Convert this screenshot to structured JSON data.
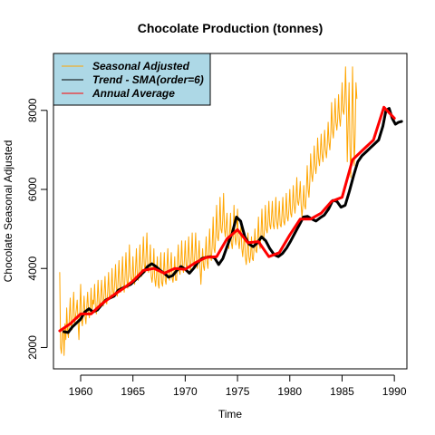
{
  "chart_data": {
    "type": "line",
    "title": "Chocolate Production (tonnes)",
    "xlabel": "Time",
    "ylabel": "Chocolate Seasonal Adjusted",
    "xlim": [
      1957.4,
      1991.2
    ],
    "ylim": [
      1460,
      9440
    ],
    "x_ticks": [
      1960,
      1965,
      1970,
      1975,
      1980,
      1985,
      1990
    ],
    "y_ticks": [
      2000,
      4000,
      6000,
      8000
    ],
    "grid": false,
    "legend": {
      "position": "top-left",
      "background": "#add8e6",
      "entries": [
        "Seasonal Adjusted",
        "Trend - SMA(order=6)",
        "Annual Average"
      ]
    },
    "series": [
      {
        "name": "Seasonal Adjusted",
        "color": "#ffa500",
        "line_width": 1,
        "x_start": 1958.0,
        "x_step": 0.0833333,
        "values": [
          3900,
          2000,
          1850,
          2350,
          2500,
          1800,
          2600,
          2200,
          3000,
          2400,
          2250,
          2750,
          3250,
          2550,
          2450,
          2900,
          3400,
          2600,
          2750,
          2950,
          3200,
          2650,
          2200,
          2900,
          3600,
          2700,
          2550,
          2900,
          3300,
          2800,
          2600,
          3000,
          3400,
          2900,
          2750,
          3000,
          3500,
          2900,
          3200,
          3100,
          3600,
          3000,
          2850,
          3200,
          3700,
          3100,
          3000,
          3300,
          3700,
          3150,
          3050,
          3400,
          3800,
          3200,
          3100,
          3400,
          3900,
          3300,
          3250,
          3450,
          4000,
          3400,
          3300,
          3600,
          4100,
          3500,
          3300,
          3700,
          4200,
          3500,
          3400,
          3700,
          4300,
          3600,
          3400,
          3800,
          4400,
          3700,
          3500,
          3900,
          4600,
          3800,
          3700,
          3700,
          4300,
          3700,
          3600,
          4000,
          4500,
          3800,
          3700,
          4000,
          4600,
          3900,
          3800,
          4200,
          4800,
          4100,
          3900,
          4300,
          4900,
          4100,
          3900,
          4100,
          4600,
          3800,
          3650,
          3900,
          4500,
          3750,
          3550,
          3850,
          4300,
          3600,
          3500,
          3950,
          4400,
          3650,
          3550,
          3850,
          4400,
          3700,
          3600,
          4000,
          4500,
          3800,
          3700,
          4000,
          4400,
          3750,
          3650,
          3900,
          4300,
          3700,
          3700,
          4100,
          4600,
          3950,
          3850,
          4200,
          4700,
          4000,
          3900,
          4200,
          4700,
          4100,
          4000,
          4300,
          4800,
          4100,
          3950,
          4300,
          4900,
          4150,
          4050,
          4400,
          4900,
          4200,
          4000,
          4250,
          4700,
          4050,
          3600,
          4100,
          4500,
          4050,
          3950,
          4300,
          4800,
          4200,
          4000,
          4400,
          5000,
          4300,
          4200,
          4600,
          5300,
          4500,
          4400,
          4800,
          5600,
          4800,
          4700,
          5000,
          5800,
          5000,
          4900,
          5200,
          5900,
          5000,
          4800,
          5100,
          5400,
          4600,
          4500,
          4900,
          5400,
          4650,
          4500,
          4800,
          5600,
          4800,
          4600,
          4900,
          5500,
          4700,
          4500,
          4800,
          5100,
          4500,
          4300,
          4600,
          4900,
          4300,
          4100,
          4400,
          4900,
          4300,
          4150,
          4350,
          4800,
          4250,
          4200,
          4500,
          5000,
          4450,
          4400,
          4700,
          5300,
          4600,
          4500,
          4900,
          5500,
          4800,
          4700,
          5000,
          5600,
          5000,
          4900,
          5200,
          5700,
          5100,
          5000,
          5300,
          5700,
          5100,
          5000,
          5300,
          5800,
          5200,
          5000,
          5300,
          5700,
          5100,
          5050,
          5350,
          5800,
          5200,
          5100,
          5400,
          5900,
          5300,
          5200,
          5500,
          6000,
          5400,
          5300,
          5600,
          6100,
          5600,
          5400,
          5700,
          6300,
          5700,
          5600,
          5800,
          6200,
          5600,
          5300,
          5600,
          6100,
          5600,
          5500,
          5900,
          6600,
          6000,
          5800,
          6200,
          6900,
          6400,
          6200,
          6500,
          7100,
          6600,
          6400,
          6700,
          7300,
          6800,
          6600,
          6900,
          7400,
          6900,
          6700,
          7000,
          7500,
          7000,
          6800,
          7100,
          7700,
          7200,
          7000,
          7400,
          8200,
          7500,
          7300,
          7700,
          8300,
          7700,
          7500,
          7800,
          8400,
          7800,
          7600,
          8000,
          8700,
          8000,
          7900,
          8200,
          9100,
          8100,
          6700,
          7700,
          8700,
          7100,
          6300,
          7400,
          9100,
          7700,
          6600,
          7400,
          8700,
          8300
        ]
      },
      {
        "name": "Trend - SMA(order=6)",
        "color": "#000000",
        "line_width": 3,
        "points": [
          [
            1958.4,
            2400
          ],
          [
            1958.8,
            2380
          ],
          [
            1959.2,
            2520
          ],
          [
            1959.6,
            2620
          ],
          [
            1960.0,
            2720
          ],
          [
            1960.4,
            2900
          ],
          [
            1960.8,
            2980
          ],
          [
            1961.2,
            2900
          ],
          [
            1961.6,
            2950
          ],
          [
            1962.0,
            3080
          ],
          [
            1962.4,
            3200
          ],
          [
            1962.8,
            3250
          ],
          [
            1963.2,
            3300
          ],
          [
            1963.6,
            3450
          ],
          [
            1964.0,
            3500
          ],
          [
            1964.4,
            3550
          ],
          [
            1964.8,
            3600
          ],
          [
            1965.2,
            3700
          ],
          [
            1965.6,
            3800
          ],
          [
            1966.0,
            3900
          ],
          [
            1966.4,
            4050
          ],
          [
            1966.8,
            4120
          ],
          [
            1967.2,
            4050
          ],
          [
            1967.6,
            3950
          ],
          [
            1968.0,
            3880
          ],
          [
            1968.4,
            3780
          ],
          [
            1968.8,
            3820
          ],
          [
            1969.2,
            3950
          ],
          [
            1969.6,
            4050
          ],
          [
            1970.0,
            3980
          ],
          [
            1970.4,
            3880
          ],
          [
            1970.8,
            4000
          ],
          [
            1971.2,
            4150
          ],
          [
            1971.6,
            4250
          ],
          [
            1972.0,
            4280
          ],
          [
            1972.4,
            4300
          ],
          [
            1972.8,
            4270
          ],
          [
            1973.2,
            4100
          ],
          [
            1973.6,
            4250
          ],
          [
            1974.0,
            4550
          ],
          [
            1974.5,
            4900
          ],
          [
            1974.9,
            5300
          ],
          [
            1975.3,
            5200
          ],
          [
            1975.7,
            4800
          ],
          [
            1976.1,
            4620
          ],
          [
            1976.5,
            4550
          ],
          [
            1976.9,
            4650
          ],
          [
            1977.3,
            4800
          ],
          [
            1977.7,
            4700
          ],
          [
            1978.1,
            4500
          ],
          [
            1978.5,
            4350
          ],
          [
            1978.9,
            4300
          ],
          [
            1979.3,
            4380
          ],
          [
            1979.7,
            4520
          ],
          [
            1980.1,
            4700
          ],
          [
            1980.5,
            4900
          ],
          [
            1980.9,
            5100
          ],
          [
            1981.3,
            5300
          ],
          [
            1981.7,
            5320
          ],
          [
            1982.1,
            5250
          ],
          [
            1982.5,
            5200
          ],
          [
            1982.9,
            5280
          ],
          [
            1983.3,
            5350
          ],
          [
            1983.7,
            5500
          ],
          [
            1984.1,
            5720
          ],
          [
            1984.5,
            5700
          ],
          [
            1984.9,
            5550
          ],
          [
            1985.3,
            5600
          ],
          [
            1985.7,
            5950
          ],
          [
            1986.1,
            6350
          ],
          [
            1986.5,
            6700
          ],
          [
            1986.9,
            6850
          ],
          [
            1987.3,
            6950
          ],
          [
            1987.7,
            7050
          ],
          [
            1988.1,
            7150
          ],
          [
            1988.5,
            7250
          ],
          [
            1988.9,
            7600
          ],
          [
            1989.2,
            8000
          ],
          [
            1989.5,
            8050
          ],
          [
            1989.8,
            7800
          ],
          [
            1990.1,
            7650
          ],
          [
            1990.4,
            7700
          ],
          [
            1990.7,
            7720
          ]
        ]
      },
      {
        "name": "Annual Average",
        "color": "#ff0000",
        "line_width": 3,
        "points": [
          [
            1958.0,
            2420
          ],
          [
            1959.0,
            2600
          ],
          [
            1960.0,
            2850
          ],
          [
            1961.0,
            2850
          ],
          [
            1962.0,
            3100
          ],
          [
            1963.0,
            3300
          ],
          [
            1964.0,
            3480
          ],
          [
            1965.0,
            3680
          ],
          [
            1966.0,
            3950
          ],
          [
            1967.0,
            4000
          ],
          [
            1968.0,
            3880
          ],
          [
            1969.0,
            4000
          ],
          [
            1970.0,
            3980
          ],
          [
            1971.0,
            4150
          ],
          [
            1972.0,
            4280
          ],
          [
            1973.0,
            4300
          ],
          [
            1974.0,
            4750
          ],
          [
            1975.0,
            4980
          ],
          [
            1976.0,
            4650
          ],
          [
            1977.0,
            4680
          ],
          [
            1978.0,
            4300
          ],
          [
            1979.0,
            4400
          ],
          [
            1980.0,
            4850
          ],
          [
            1981.0,
            5250
          ],
          [
            1982.0,
            5250
          ],
          [
            1983.0,
            5400
          ],
          [
            1984.0,
            5700
          ],
          [
            1985.0,
            5800
          ],
          [
            1986.0,
            6750
          ],
          [
            1987.0,
            7000
          ],
          [
            1988.0,
            7250
          ],
          [
            1989.0,
            8080
          ],
          [
            1990.0,
            7800
          ]
        ]
      }
    ]
  }
}
